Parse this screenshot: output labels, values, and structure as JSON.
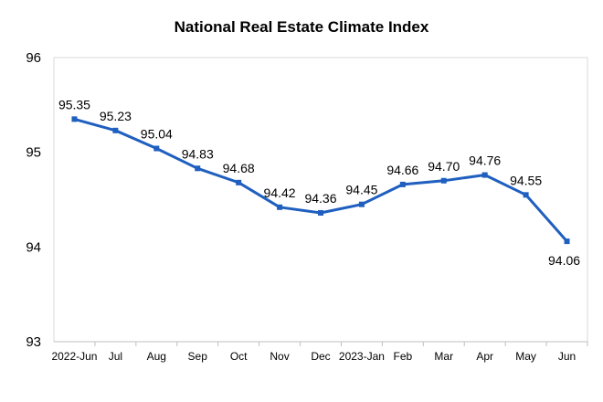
{
  "chart_data": {
    "type": "line",
    "title": "National Real Estate Climate Index",
    "xlabel": "",
    "ylabel": "",
    "categories": [
      "2022-Jun",
      "Jul",
      "Aug",
      "Sep",
      "Oct",
      "Nov",
      "Dec",
      "2023-Jan",
      "Feb",
      "Mar",
      "Apr",
      "May",
      "Jun"
    ],
    "series": [
      {
        "values": [
          95.35,
          95.23,
          95.04,
          94.83,
          94.68,
          94.42,
          94.36,
          94.45,
          94.66,
          94.7,
          94.76,
          94.55,
          94.06
        ]
      }
    ],
    "data_labels": [
      "95.35",
      "95.23",
      "95.04",
      "94.83",
      "94.68",
      "94.42",
      "94.36",
      "94.45",
      "94.66",
      "94.70",
      "94.76",
      "94.55",
      "94.06"
    ],
    "ylim": [
      93,
      96
    ],
    "yticks": [
      "93",
      "94",
      "95",
      "96"
    ],
    "grid": false,
    "legend": "none",
    "line_color": "#1f5fbf"
  }
}
